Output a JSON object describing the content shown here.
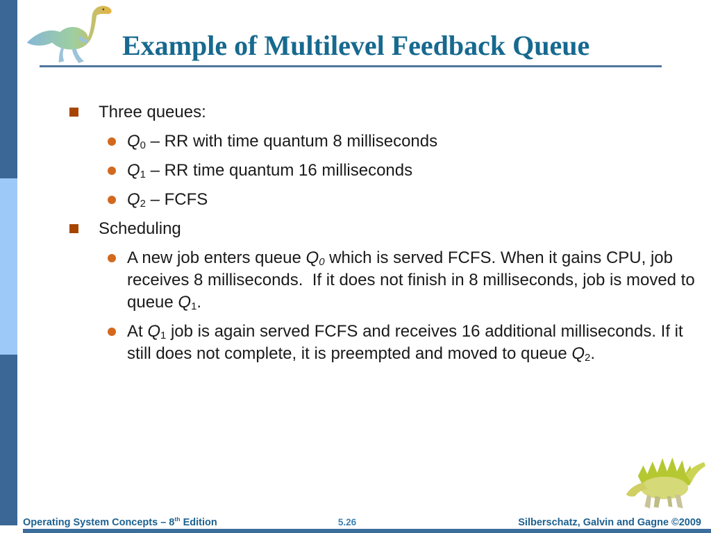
{
  "slide": {
    "title": "Example of Multilevel Feedback Queue",
    "page_number": "5.26",
    "footer_right": "Silberschatz, Galvin and Gagne ©2009",
    "footer_left_segments": [
      {
        "text": "Operating System Concepts – 8"
      },
      {
        "sup": "th"
      },
      {
        "text": " Edition"
      }
    ]
  },
  "content": {
    "items": [
      {
        "level": 1,
        "segments": [
          {
            "text": "Three queues:"
          }
        ]
      },
      {
        "level": 2,
        "segments": [
          {
            "italic": "Q"
          },
          {
            "sub": "0"
          },
          {
            "text": " – RR with time quantum 8 milliseconds"
          }
        ]
      },
      {
        "level": 2,
        "segments": [
          {
            "italic": "Q"
          },
          {
            "sub": "1"
          },
          {
            "text": " – RR time quantum 16 milliseconds"
          }
        ]
      },
      {
        "level": 2,
        "segments": [
          {
            "italic": "Q"
          },
          {
            "sub": "2"
          },
          {
            "text": " – FCFS"
          }
        ]
      },
      {
        "level": 1,
        "segments": [
          {
            "text": "Scheduling"
          }
        ]
      },
      {
        "level": 2,
        "segments": [
          {
            "text": "A new job enters queue "
          },
          {
            "italic": "Q"
          },
          {
            "subi": "0"
          },
          {
            "text": " which is served FCFS. When it gains CPU, job receives 8 milliseconds.  If it does not finish in 8 milliseconds, job is moved to queue "
          },
          {
            "italic": "Q"
          },
          {
            "sub": "1"
          },
          {
            "text": "."
          }
        ]
      },
      {
        "level": 2,
        "segments": [
          {
            "text": "At "
          },
          {
            "italic": "Q"
          },
          {
            "sub": "1"
          },
          {
            "text": " job is again served FCFS and receives 16 additional milliseconds. If it still does not complete, it is preempted and moved to queue "
          },
          {
            "italic": "Q"
          },
          {
            "sub": "2"
          },
          {
            "text": "."
          }
        ]
      }
    ]
  },
  "icons": {
    "header_dino": "dinosaur-logo-icon",
    "footer_dino": "dinosaur-logo-small-icon",
    "level1_bullet": "square-bullet-icon",
    "level2_bullet": "circle-bullet-icon"
  },
  "colors": {
    "title": "#17698F",
    "header_rule": "#4F759E",
    "sidebar_dark": "#3A6795",
    "sidebar_light": "#9CC9F7",
    "bottom_bar": "#3C6E9C",
    "bullet_square": "#A64500",
    "bullet_circle": "#D2691E",
    "body_text": "#1A1A1A",
    "footer_text": "#1D6190",
    "page_number": "#3B7FB0"
  }
}
